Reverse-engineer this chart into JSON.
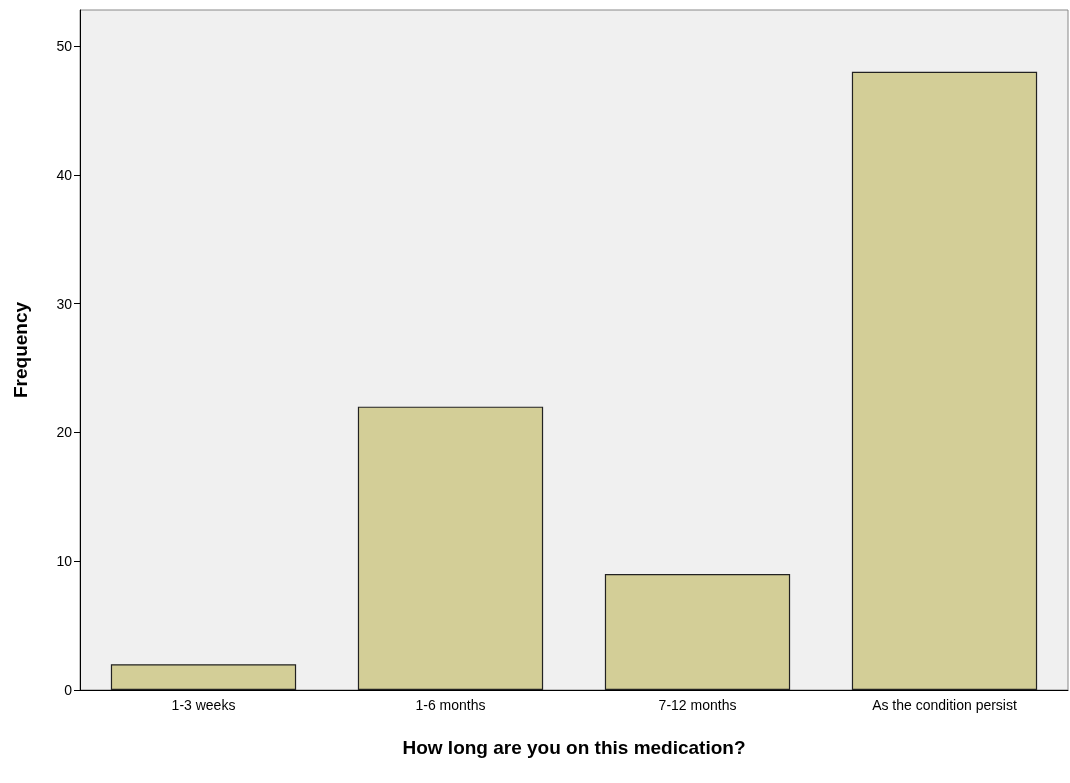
{
  "chart_data": {
    "type": "bar",
    "xlabel": "How long are you on this medication?",
    "ylabel": "Frequency",
    "categories": [
      "1-3 weeks",
      "1-6 months",
      "7-12 months",
      "As the condition persist"
    ],
    "values": [
      2,
      22,
      9,
      48
    ],
    "color": "#d3ce97",
    "ylim": [
      0,
      52.8
    ],
    "yticks": [
      0,
      10,
      20,
      30,
      40,
      50
    ],
    "grid": false
  }
}
